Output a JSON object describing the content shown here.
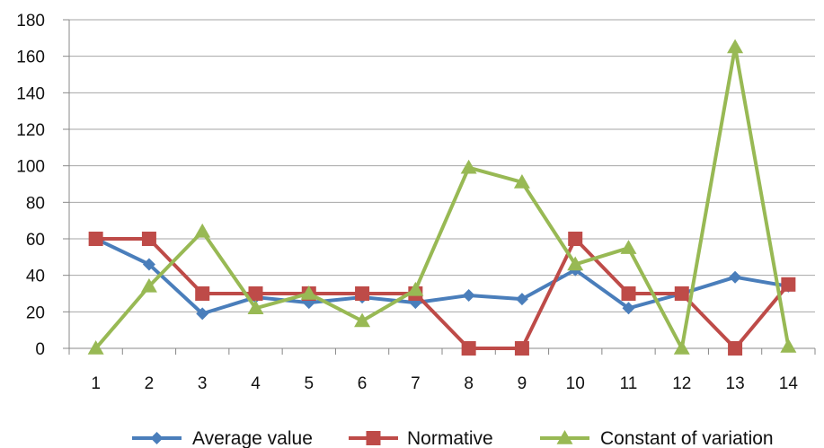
{
  "chart_data": {
    "type": "line",
    "categories": [
      "1",
      "2",
      "3",
      "4",
      "5",
      "6",
      "7",
      "8",
      "9",
      "10",
      "11",
      "12",
      "13",
      "14"
    ],
    "ylim": [
      0,
      180
    ],
    "yticks": [
      0,
      20,
      40,
      60,
      80,
      100,
      120,
      140,
      160,
      180
    ],
    "grid": true,
    "legend": "bottom",
    "series": [
      {
        "name": "Average value",
        "color": "#4a7ebb",
        "marker": "diamond",
        "values": [
          60,
          46,
          19,
          28,
          25,
          28,
          25,
          29,
          27,
          43,
          22,
          30,
          39,
          34
        ]
      },
      {
        "name": "Normative",
        "color": "#be4b48",
        "marker": "square",
        "values": [
          60,
          60,
          30,
          30,
          30,
          30,
          30,
          0,
          0,
          60,
          30,
          30,
          0,
          35
        ]
      },
      {
        "name": "Constant of variation",
        "color": "#98b954",
        "marker": "triangle",
        "values": [
          0,
          34,
          64,
          22,
          30,
          15,
          32,
          99,
          91,
          46,
          55,
          0,
          165,
          1
        ]
      }
    ]
  }
}
